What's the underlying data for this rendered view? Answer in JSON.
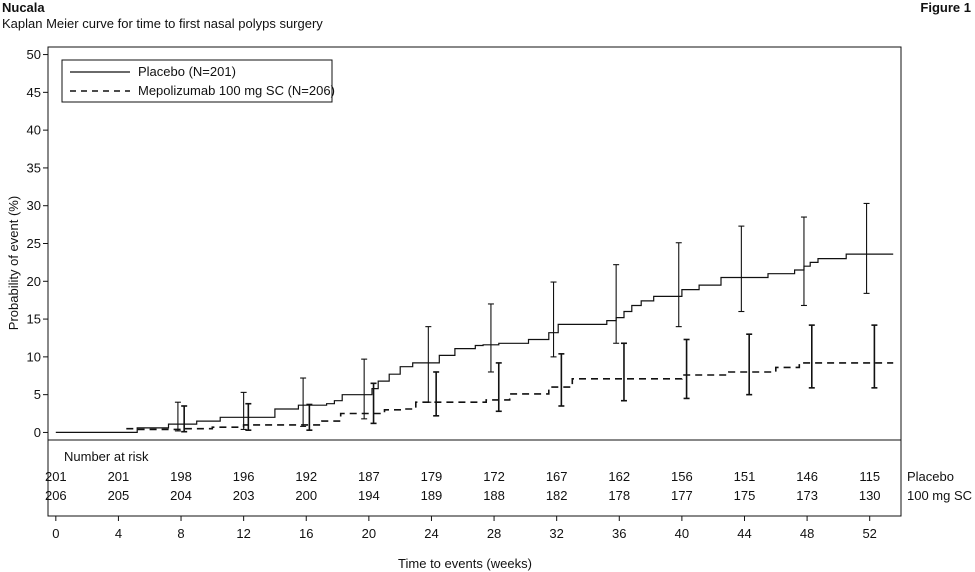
{
  "header": {
    "brand": "Nucala",
    "subtitle": "Kaplan Meier curve for time to first nasal polyps surgery",
    "figure_label": "Figure 1"
  },
  "chart_data": {
    "type": "line",
    "title": "Kaplan Meier curve for time to first nasal polyps surgery",
    "xlabel": "Time to events (weeks)",
    "ylabel": "Probability of event (%)",
    "xlim": [
      -0.5,
      54
    ],
    "ylim": [
      -1,
      51
    ],
    "xticks": [
      0,
      4,
      8,
      12,
      16,
      20,
      24,
      28,
      32,
      36,
      40,
      44,
      48,
      52
    ],
    "yticks": [
      0,
      5,
      10,
      15,
      20,
      25,
      30,
      35,
      40,
      45,
      50
    ],
    "legend_position": "top-left",
    "series": [
      {
        "name": "Placebo (N=201)",
        "style": "solid",
        "color": "#111111",
        "x": [
          0,
          5.2,
          7.2,
          9,
          10.5,
          14,
          15.5,
          17.3,
          17.8,
          18.3,
          20.2,
          20.6,
          21.3,
          22,
          22.8,
          24.5,
          25.5,
          26.8,
          27.3,
          28.3,
          30.2,
          31.5,
          32.1,
          35.2,
          35.8,
          36.3,
          36.8,
          37.4,
          38.2,
          40,
          41.1,
          42.5,
          45.5,
          47.2,
          47.8,
          48.2,
          48.7,
          50.5,
          53.5
        ],
        "y": [
          0,
          0.6,
          1.1,
          1.5,
          2.0,
          3.1,
          3.6,
          3.8,
          4.2,
          5.0,
          5.8,
          6.8,
          7.7,
          8.7,
          9.2,
          10.2,
          11.1,
          11.5,
          11.6,
          11.8,
          12.3,
          13.2,
          14.3,
          14.8,
          15.2,
          16.0,
          16.8,
          17.4,
          18.0,
          18.9,
          19.5,
          20.5,
          21.0,
          21.5,
          22.0,
          22.5,
          23.0,
          23.6,
          23.6
        ]
      },
      {
        "name": "Mepolizumab 100 mg SC (N=206)",
        "style": "dashed",
        "color": "#111111",
        "x": [
          4.5,
          5.2,
          8,
          10,
          12,
          17,
          18.2,
          21,
          22,
          23,
          27.5,
          29,
          31.5,
          33,
          40,
          43,
          46,
          47.5,
          53.5
        ],
        "y": [
          0.5,
          0.4,
          0.5,
          0.7,
          1.0,
          1.5,
          2.5,
          3.0,
          3.1,
          4.0,
          4.3,
          5.1,
          6.0,
          7.1,
          7.6,
          8.0,
          8.6,
          9.2,
          9.2
        ]
      }
    ],
    "error_bars": [
      {
        "series": "Placebo (N=201)",
        "x": [
          7.8,
          12,
          15.8,
          19.7,
          23.8,
          27.8,
          31.8,
          35.8,
          39.8,
          43.8,
          47.8,
          51.8
        ],
        "low": [
          0.2,
          0.4,
          0.8,
          1.8,
          4.0,
          8.0,
          10.0,
          11.8,
          14.0,
          16.0,
          16.8,
          18.4
        ],
        "high": [
          4.0,
          5.3,
          7.2,
          9.7,
          14.0,
          17.0,
          19.9,
          22.2,
          25.1,
          27.3,
          28.5,
          30.3
        ]
      },
      {
        "series": "Mepolizumab 100 mg SC (N=206)",
        "x": [
          8.2,
          12.3,
          16.2,
          20.3,
          24.3,
          28.3,
          32.3,
          36.3,
          40.3,
          44.3,
          48.3,
          52.3
        ],
        "low": [
          0.1,
          0.3,
          0.3,
          1.2,
          2.2,
          2.8,
          3.5,
          4.2,
          4.5,
          5.0,
          5.9,
          5.9
        ],
        "high": [
          3.5,
          3.8,
          3.7,
          6.5,
          8.0,
          9.2,
          10.4,
          11.8,
          12.3,
          13.0,
          14.2,
          14.2
        ]
      }
    ],
    "risk_table": {
      "title": "Number at risk",
      "columns": [
        0,
        4,
        8,
        12,
        16,
        20,
        24,
        28,
        32,
        36,
        40,
        44,
        48,
        52
      ],
      "rows": [
        {
          "label": "Placebo",
          "values": [
            "201",
            "201",
            "198",
            "196",
            "192",
            "187",
            "179",
            "172",
            "167",
            "162",
            "156",
            "151",
            "146",
            "115"
          ]
        },
        {
          "label": "100 mg SC",
          "values": [
            "206",
            "205",
            "204",
            "203",
            "200",
            "194",
            "189",
            "188",
            "182",
            "178",
            "177",
            "175",
            "173",
            "130"
          ]
        }
      ]
    }
  }
}
